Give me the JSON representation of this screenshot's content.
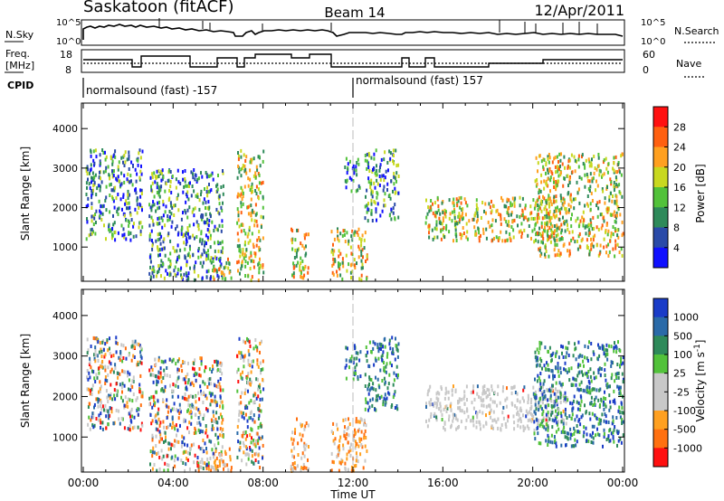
{
  "header": {
    "station": "Saskatoon (fitACF)",
    "beam": "Beam 14",
    "date": "12/Apr/2011"
  },
  "noise_panel": {
    "left_label": "N.Sky",
    "right_label": "N.Search",
    "y_ticks_left": [
      "10^5",
      "10^0"
    ],
    "y_ticks_right": [
      "10^5",
      "10^0"
    ]
  },
  "freq_panel": {
    "left_label_1": "Freq.",
    "left_label_2": "[MHz]",
    "right_label": "Nave",
    "y_ticks_left": [
      "18",
      "8"
    ],
    "y_ticks_right": [
      "60",
      "0"
    ]
  },
  "cpid": {
    "label": "CPID",
    "segments": [
      {
        "start": "00:00",
        "text": "normalsound (fast) -157"
      },
      {
        "start": "12:00",
        "text": "normalsound (fast) 157"
      }
    ]
  },
  "power_panel": {
    "ylabel": "Slant Range [km]",
    "y_ticks": [
      "1000",
      "2000",
      "3000",
      "4000"
    ],
    "colorbar_label": "Power [dB]",
    "colorbar_ticks": [
      "4",
      "8",
      "12",
      "16",
      "20",
      "24",
      "28"
    ],
    "colors": [
      "#1010ff",
      "#2a4aa8",
      "#2e8a5a",
      "#52c23a",
      "#c8d820",
      "#ffa020",
      "#ff6010",
      "#ff1010"
    ]
  },
  "velocity_panel": {
    "ylabel": "Slant Range [km]",
    "y_ticks": [
      "1000",
      "2000",
      "3000",
      "4000"
    ],
    "colorbar_label": "Velocity [m s",
    "colorbar_label_sup": "-1",
    "colorbar_label_end": "]",
    "colorbar_ticks": [
      "1000",
      "500",
      "100",
      "25",
      "-25",
      "-100",
      "-500",
      "-1000"
    ],
    "colors": [
      "#1a3cc8",
      "#2a6aa8",
      "#2e8a5a",
      "#52c23a",
      "#c8c8c8",
      "#c8c8c8",
      "#ffa020",
      "#ff7010",
      "#ff1010"
    ]
  },
  "x_axis": {
    "label": "Time UT",
    "ticks": [
      "00:00",
      "04:00",
      "08:00",
      "12:00",
      "16:00",
      "20:00",
      "00:00"
    ]
  },
  "chart_data": {
    "type": "heatmap",
    "title": "Saskatoon (fitACF) Beam 14 12/Apr/2011",
    "xlabel": "Time UT",
    "ylabel": "Slant Range [km]",
    "xlim_hours": [
      0,
      24
    ],
    "ylim_km": [
      180,
      4600
    ],
    "colorbars": {
      "power_db": [
        4,
        8,
        12,
        16,
        20,
        24,
        28
      ],
      "velocity_ms": [
        1000,
        500,
        100,
        25,
        -25,
        -100,
        -500,
        -1000
      ]
    },
    "echo_regions": [
      {
        "t0": 0.1,
        "t1": 2.6,
        "r0": 1200,
        "r1": 3500,
        "power": "medium",
        "velocity": "mixed"
      },
      {
        "t0": 2.9,
        "t1": 6.2,
        "r0": 200,
        "r1": 3000,
        "power": "medium",
        "velocity": "mixed"
      },
      {
        "t0": 5.6,
        "t1": 6.6,
        "r0": 200,
        "r1": 800,
        "power": "high",
        "velocity": "negative"
      },
      {
        "t0": 6.8,
        "t1": 8.0,
        "r0": 200,
        "r1": 3500,
        "power": "high",
        "velocity": "mixed"
      },
      {
        "t0": 9.2,
        "t1": 10.0,
        "r0": 200,
        "r1": 1500,
        "power": "high",
        "velocity": "negative"
      },
      {
        "t0": 11.0,
        "t1": 12.6,
        "r0": 200,
        "r1": 1500,
        "power": "high",
        "velocity": "negative"
      },
      {
        "t0": 11.6,
        "t1": 12.3,
        "r0": 2400,
        "r1": 3300,
        "power": "low",
        "velocity": "positive"
      },
      {
        "t0": 12.5,
        "t1": 14.0,
        "r0": 1700,
        "r1": 3500,
        "power": "medium",
        "velocity": "positive"
      },
      {
        "t0": 15.2,
        "t1": 21.5,
        "r0": 1200,
        "r1": 2300,
        "power": "high",
        "velocity": "near-zero"
      },
      {
        "t0": 20.0,
        "t1": 24.0,
        "r0": 800,
        "r1": 3400,
        "power": "high",
        "velocity": "positive"
      }
    ]
  }
}
